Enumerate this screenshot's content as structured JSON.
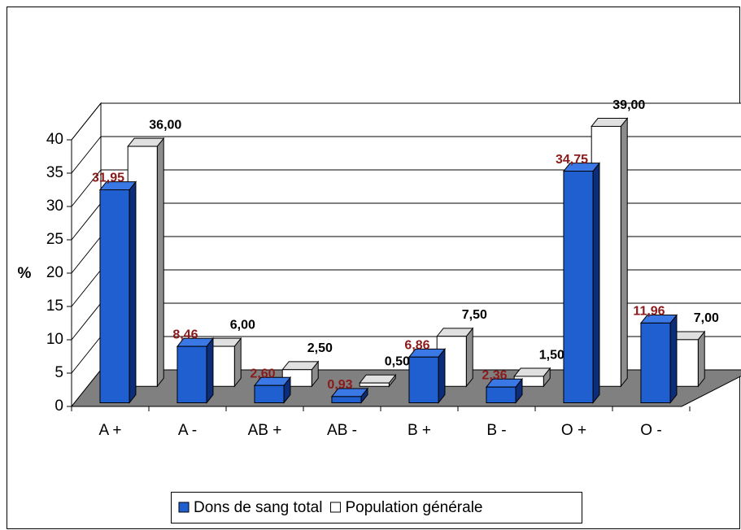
{
  "chart_data": {
    "type": "bar3d",
    "y_label": "%",
    "categories": [
      "A +",
      "A -",
      "AB +",
      "AB -",
      "B +",
      "B -",
      "O +",
      "O -"
    ],
    "series": [
      {
        "name": "Dons de sang total",
        "color": "#1f5fd0",
        "values": [
          31.95,
          8.46,
          2.6,
          0.93,
          6.86,
          2.36,
          34.75,
          11.96
        ],
        "value_labels": [
          "31,95",
          "8,46",
          "2,60",
          "0,93",
          "6,86",
          "2,36",
          "34,75",
          "11,96"
        ],
        "label_color": "#8b1a1a"
      },
      {
        "name": "Population générale",
        "color": "#ffffff",
        "values": [
          36.0,
          6.0,
          2.5,
          0.5,
          7.5,
          1.5,
          39.0,
          7.0
        ],
        "value_labels": [
          "36,00",
          "6,00",
          "2,50",
          "0,50",
          "7,50",
          "1,50",
          "39,00",
          "7,00"
        ],
        "label_color": "#000000"
      }
    ],
    "ylim": [
      0,
      40
    ],
    "yticks": [
      0,
      5,
      10,
      15,
      20,
      25,
      30,
      35,
      40
    ],
    "grid": true,
    "legend": "bottom"
  }
}
